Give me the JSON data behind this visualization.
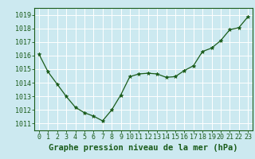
{
  "x": [
    0,
    1,
    2,
    3,
    4,
    5,
    6,
    7,
    8,
    9,
    10,
    11,
    12,
    13,
    14,
    15,
    16,
    17,
    18,
    19,
    20,
    21,
    22,
    23
  ],
  "y": [
    1016.1,
    1014.8,
    1013.9,
    1013.0,
    1012.2,
    1011.8,
    1011.55,
    1011.2,
    1012.0,
    1013.1,
    1014.45,
    1014.65,
    1014.7,
    1014.65,
    1014.4,
    1014.45,
    1014.9,
    1015.25,
    1016.3,
    1016.55,
    1017.1,
    1017.9,
    1018.05,
    1018.85
  ],
  "line_color": "#1a5c1a",
  "marker": "*",
  "marker_size": 3.5,
  "bg_color": "#cce9f0",
  "grid_color": "#ffffff",
  "ylabel_ticks": [
    1011,
    1012,
    1013,
    1014,
    1015,
    1016,
    1017,
    1018,
    1019
  ],
  "xlabel": "Graphe pression niveau de la mer (hPa)",
  "xlabel_color": "#1a5c1a",
  "xlabel_fontsize": 7.5,
  "border_color": "#1a5c1a",
  "tick_label_fontsize": 6.0,
  "ylim": [
    1010.5,
    1019.5
  ],
  "xlim": [
    -0.5,
    23.5
  ]
}
